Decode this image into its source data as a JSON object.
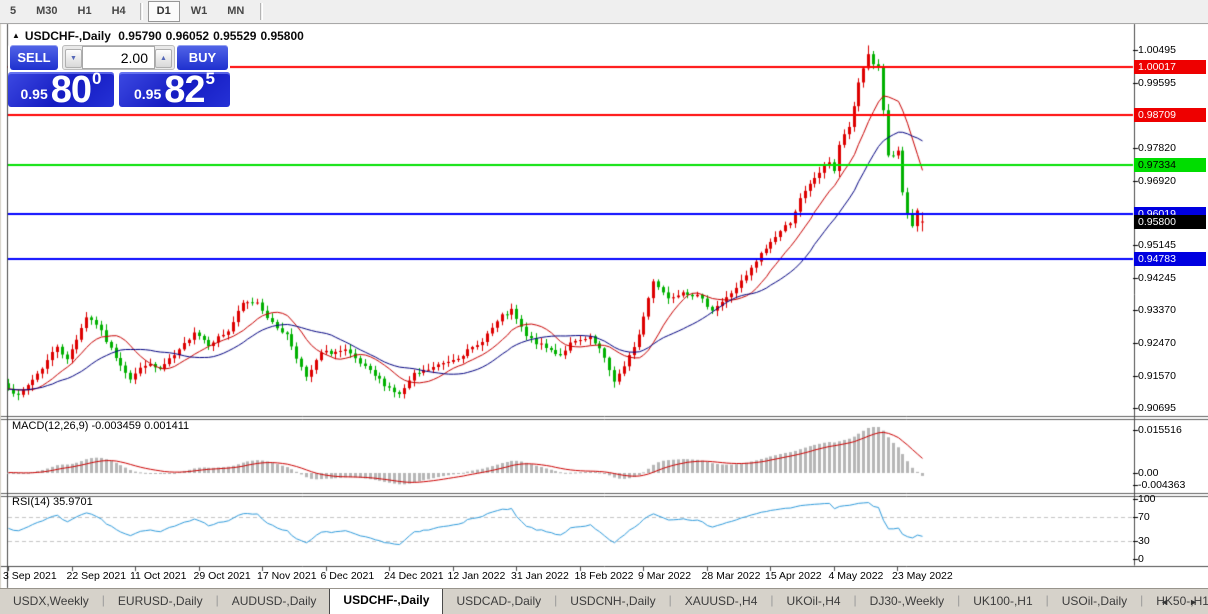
{
  "toolbar": {
    "periods": [
      "5",
      "M30",
      "H1",
      "H4",
      "D1",
      "W1",
      "MN"
    ],
    "active": "D1",
    "separator_before": "D1"
  },
  "chart": {
    "collapse_icon": "▲",
    "symbol": "USDCHF-,Daily",
    "ohlc": {
      "open": "0.95790",
      "high": "0.96052",
      "low": "0.95529",
      "close": "0.95800"
    }
  },
  "trade_panel": {
    "sell_label": "SELL",
    "buy_label": "BUY",
    "volume": "2.00",
    "spinner_down_icon": "▼",
    "spinner_up_icon": "▲",
    "sell_price": {
      "prefix": "0.95",
      "digits": "80",
      "pip": "0"
    },
    "buy_price": {
      "prefix": "0.95",
      "digits": "82",
      "pip": "5"
    }
  },
  "macd_panel": {
    "label": "MACD(12,26,9) -0.003459 0.001411",
    "scale": [
      "0.015516",
      "0.00",
      "-0.004363"
    ]
  },
  "rsi_panel": {
    "label": "RSI(14) 35.9701",
    "scale": [
      "100",
      "70",
      "30",
      "0"
    ]
  },
  "date_axis": {
    "labels": [
      "3 Sep 2021",
      "22 Sep 2021",
      "11 Oct 2021",
      "29 Oct 2021",
      "17 Nov 2021",
      "6 Dec 2021",
      "24 Dec 2021",
      "12 Jan 2022",
      "31 Jan 2022",
      "18 Feb 2022",
      "9 Mar 2022",
      "28 Mar 2022",
      "15 Apr 2022",
      "4 May 2022",
      "23 May 2022"
    ]
  },
  "tabs": {
    "items": [
      "USDX,Weekly",
      "EURUSD-,Daily",
      "AUDUSD-,Daily",
      "USDCHF-,Daily",
      "USDCAD-,Daily",
      "USDCNH-,Daily",
      "XAUUSD-,H4",
      "UKOil-,H4",
      "DJ30-,Weekly",
      "UK100-,H1",
      "USOil-,Daily",
      "HK50-,H1"
    ],
    "active": "USDCHF-,Daily",
    "left_arrow": "◄",
    "right_arrow": "►"
  },
  "chart_data": {
    "type": "candlestick",
    "pair": "USDCHF",
    "timeframe": "Daily",
    "n_candles": 188,
    "candles_per_date_tick": 13,
    "y_axis": {
      "top_price": 1.00495,
      "bottom_price": 0.90695
    },
    "price_ticks": [
      1.00495,
      0.99595,
      0.9782,
      0.9692,
      0.95145,
      0.94245,
      0.9337,
      0.9247,
      0.9157,
      0.90695
    ],
    "close_waypoints": [
      [
        0,
        0.9128
      ],
      [
        2,
        0.91
      ],
      [
        7,
        0.918
      ],
      [
        10,
        0.924
      ],
      [
        12,
        0.92
      ],
      [
        16,
        0.932
      ],
      [
        18,
        0.93
      ],
      [
        21,
        0.923
      ],
      [
        25,
        0.915
      ],
      [
        28,
        0.919
      ],
      [
        31,
        0.9175
      ],
      [
        35,
        0.9225
      ],
      [
        38,
        0.928
      ],
      [
        41,
        0.9245
      ],
      [
        45,
        0.928
      ],
      [
        48,
        0.9355
      ],
      [
        51,
        0.936
      ],
      [
        54,
        0.93
      ],
      [
        57,
        0.927
      ],
      [
        60,
        0.918
      ],
      [
        61,
        0.915
      ],
      [
        64,
        0.922
      ],
      [
        69,
        0.9225
      ],
      [
        72,
        0.919
      ],
      [
        77,
        0.9135
      ],
      [
        80,
        0.9105
      ],
      [
        83,
        0.916
      ],
      [
        87,
        0.918
      ],
      [
        92,
        0.921
      ],
      [
        96,
        0.924
      ],
      [
        101,
        0.932
      ],
      [
        103,
        0.9335
      ],
      [
        106,
        0.9265
      ],
      [
        109,
        0.924
      ],
      [
        113,
        0.9215
      ],
      [
        115,
        0.9245
      ],
      [
        119,
        0.926
      ],
      [
        121,
        0.923
      ],
      [
        124,
        0.9145
      ],
      [
        126,
        0.918
      ],
      [
        129,
        0.927
      ],
      [
        132,
        0.942
      ],
      [
        135,
        0.937
      ],
      [
        138,
        0.939
      ],
      [
        141,
        0.9375
      ],
      [
        144,
        0.934
      ],
      [
        147,
        0.937
      ],
      [
        151,
        0.943
      ],
      [
        154,
        0.949
      ],
      [
        157,
        0.954
      ],
      [
        160,
        0.958
      ],
      [
        162,
        0.964
      ],
      [
        165,
        0.97
      ],
      [
        168,
        0.9745
      ],
      [
        169,
        0.972
      ],
      [
        170,
        0.979
      ],
      [
        172,
        0.984
      ],
      [
        173,
        0.989
      ],
      [
        174,
        0.996
      ],
      [
        176,
        1.004
      ],
      [
        177,
        1.001
      ],
      [
        178,
        1.0005
      ],
      [
        179,
        0.988
      ],
      [
        180,
        0.976
      ],
      [
        181,
        0.9755
      ],
      [
        182,
        0.977
      ],
      [
        183,
        0.966
      ],
      [
        184,
        0.96
      ],
      [
        185,
        0.9565
      ],
      [
        186,
        0.9605
      ],
      [
        187,
        0.958
      ]
    ],
    "last_ohlc": {
      "open": 0.9579,
      "high": 0.96052,
      "low": 0.95529,
      "close": 0.958
    },
    "peak_high": 1.0062,
    "current_price": 0.958,
    "candle_colors": {
      "up": "#dd0000",
      "down": "#00b000"
    },
    "levels": [
      {
        "price": 1.00017,
        "line_color": "#ff0000",
        "badge_bg": "#ee0000",
        "badge_text": "#ffffff"
      },
      {
        "price": 0.98709,
        "line_color": "#ff0000",
        "badge_bg": "#ee0000",
        "badge_text": "#ffffff"
      },
      {
        "price": 0.97334,
        "line_color": "#00e000",
        "badge_bg": "#00dd00",
        "badge_text": "#000000"
      },
      {
        "price": 0.96019,
        "line_color": "#0000ff",
        "badge_bg": "#0000e0",
        "badge_text": "#ffffff"
      },
      {
        "price": 0.94783,
        "line_color": "#0000ff",
        "badge_bg": "#0000e0",
        "badge_text": "#ffffff"
      }
    ],
    "current_badge": {
      "bg": "#000000",
      "text": "#ffffff"
    },
    "moving_averages": [
      {
        "period": 10,
        "color": "#c80000"
      },
      {
        "period": 20,
        "color": "#000080"
      }
    ],
    "macd": {
      "fast": 12,
      "slow": 26,
      "signal": 9,
      "main_value": -0.003459,
      "signal_value": 0.001411,
      "histogram_color": "#b6b6b6",
      "signal_color": "#cc0000",
      "scale_ticks": [
        0.015516,
        0.0,
        -0.004363
      ]
    },
    "rsi": {
      "period": 14,
      "value": 35.9701,
      "color": "#2f9bdc",
      "levels": [
        70,
        30
      ],
      "scale_ticks": [
        100,
        70,
        30,
        0
      ]
    }
  }
}
